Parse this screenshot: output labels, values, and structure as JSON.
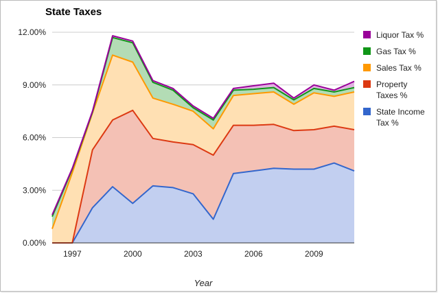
{
  "chart_data": {
    "type": "area",
    "stacked": true,
    "title": "State Taxes",
    "xlabel": "Year",
    "ylabel": "",
    "x": [
      1996,
      1997,
      1998,
      1999,
      2000,
      2001,
      2002,
      2003,
      2004,
      2005,
      2006,
      2007,
      2008,
      2009,
      2010,
      2011
    ],
    "xticks": [
      1997,
      2000,
      2003,
      2006,
      2009
    ],
    "xlim": [
      1996,
      2011
    ],
    "ylim": [
      0,
      12
    ],
    "yticks": [
      0,
      3,
      6,
      9,
      12
    ],
    "ytick_labels": [
      "0.00%",
      "3.00%",
      "6.00%",
      "9.00%",
      "12.00%"
    ],
    "legend_position": "right",
    "series": [
      {
        "name": "State Income Tax %",
        "color": "#3366cc",
        "fill": "#c2cff0",
        "values": [
          0,
          0,
          2.0,
          3.2,
          2.25,
          3.25,
          3.15,
          2.8,
          1.35,
          3.95,
          4.1,
          4.25,
          4.2,
          4.2,
          4.55,
          4.1
        ]
      },
      {
        "name": "Property Taxes %",
        "color": "#dc3912",
        "fill": "#f4c1b5",
        "values": [
          0,
          0,
          3.3,
          3.8,
          5.3,
          2.7,
          2.6,
          2.8,
          3.65,
          2.75,
          2.6,
          2.5,
          2.2,
          2.25,
          2.1,
          2.35
        ]
      },
      {
        "name": "Sales Tax %",
        "color": "#ff9900",
        "fill": "#ffe0b3",
        "values": [
          0.8,
          4.0,
          2.1,
          3.7,
          2.75,
          2.3,
          2.15,
          1.9,
          1.5,
          1.7,
          1.8,
          1.85,
          1.5,
          2.1,
          1.7,
          2.15
        ]
      },
      {
        "name": "Gas Tax %",
        "color": "#109618",
        "fill": "#b3dcb5",
        "values": [
          0.7,
          0.2,
          0.05,
          1.0,
          1.1,
          0.9,
          0.8,
          0.2,
          0.5,
          0.3,
          0.25,
          0.25,
          0.25,
          0.25,
          0.25,
          0.25
        ]
      },
      {
        "name": "Liquor Tax %",
        "color": "#990099",
        "fill": "#e0b3e0",
        "values": [
          0.1,
          0.05,
          0.05,
          0.1,
          0.1,
          0.1,
          0.1,
          0.1,
          0.1,
          0.1,
          0.2,
          0.25,
          0.1,
          0.2,
          0.1,
          0.35
        ]
      }
    ],
    "legend_order": [
      "Liquor Tax %",
      "Gas Tax %",
      "Sales Tax %",
      "Property Taxes %",
      "State Income Tax %"
    ],
    "legend_lines": {
      "Liquor Tax %": [
        "Liquor Tax %"
      ],
      "Gas Tax %": [
        "Gas Tax %"
      ],
      "Sales Tax %": [
        "Sales Tax %"
      ],
      "Property Taxes %": [
        "Property",
        "Taxes %"
      ],
      "State Income Tax %": [
        "State Income",
        "Tax %"
      ]
    }
  }
}
